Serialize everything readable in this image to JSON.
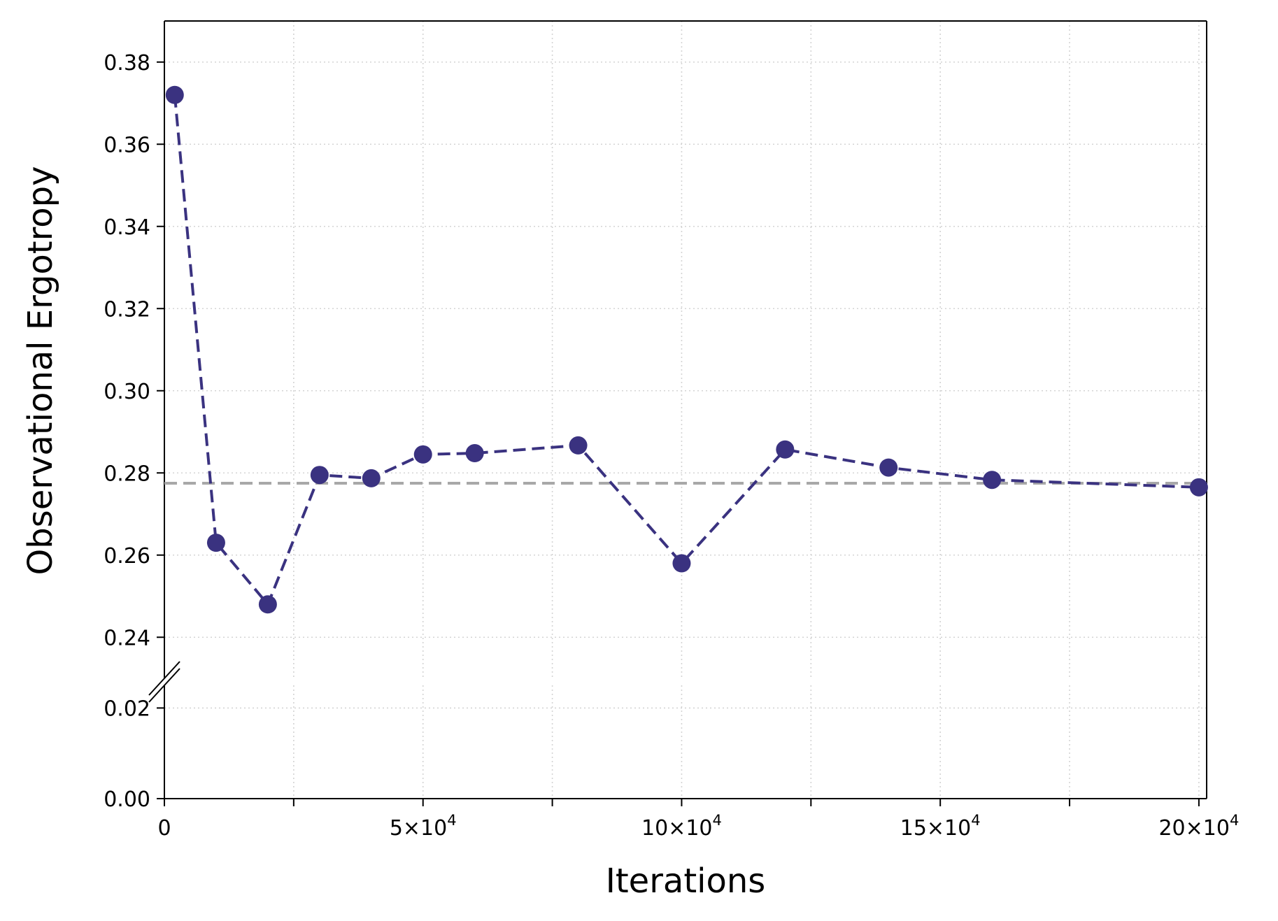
{
  "chart_data": {
    "type": "line",
    "xlabel": "Iterations",
    "ylabel": "Observational Ergotropy",
    "xlim": [
      0,
      201500
    ],
    "ylim_upper": [
      0.23,
      0.39
    ],
    "ylim_lower": [
      0.0,
      0.025
    ],
    "broken_y_axis": true,
    "grid": true,
    "grid_style": "dotted",
    "x_ticks": [
      {
        "value": 0,
        "mantissa": "0",
        "exponent": ""
      },
      {
        "value": 50000,
        "mantissa": "5",
        "exponent": "4"
      },
      {
        "value": 100000,
        "mantissa": "10",
        "exponent": "4"
      },
      {
        "value": 150000,
        "mantissa": "15",
        "exponent": "4"
      },
      {
        "value": 200000,
        "mantissa": "20",
        "exponent": "4"
      }
    ],
    "x_minor_ticks": [
      25000,
      75000,
      125000,
      175000
    ],
    "y_ticks_upper": [
      "0.24",
      "0.26",
      "0.28",
      "0.30",
      "0.32",
      "0.34",
      "0.36",
      "0.38"
    ],
    "y_ticks_lower": [
      "0.00",
      "0.02"
    ],
    "series": [
      {
        "x": [
          2000,
          10000,
          20000,
          30000,
          40000,
          50000,
          60000,
          80000,
          100000,
          120000,
          140000,
          160000,
          200000
        ],
        "values": [
          0.372,
          0.263,
          0.248,
          0.2795,
          0.2787,
          0.2845,
          0.2848,
          0.2867,
          0.258,
          0.2857,
          0.2813,
          0.2783,
          0.2765
        ],
        "color": "#3a3280",
        "line_style": "dashed",
        "marker": "circle"
      }
    ],
    "reference_line": {
      "y": 0.2775,
      "color": "#a8a8a8",
      "line_style": "dashed"
    },
    "colors": {
      "grid": "#d4d4d4",
      "axis": "#000000"
    }
  }
}
